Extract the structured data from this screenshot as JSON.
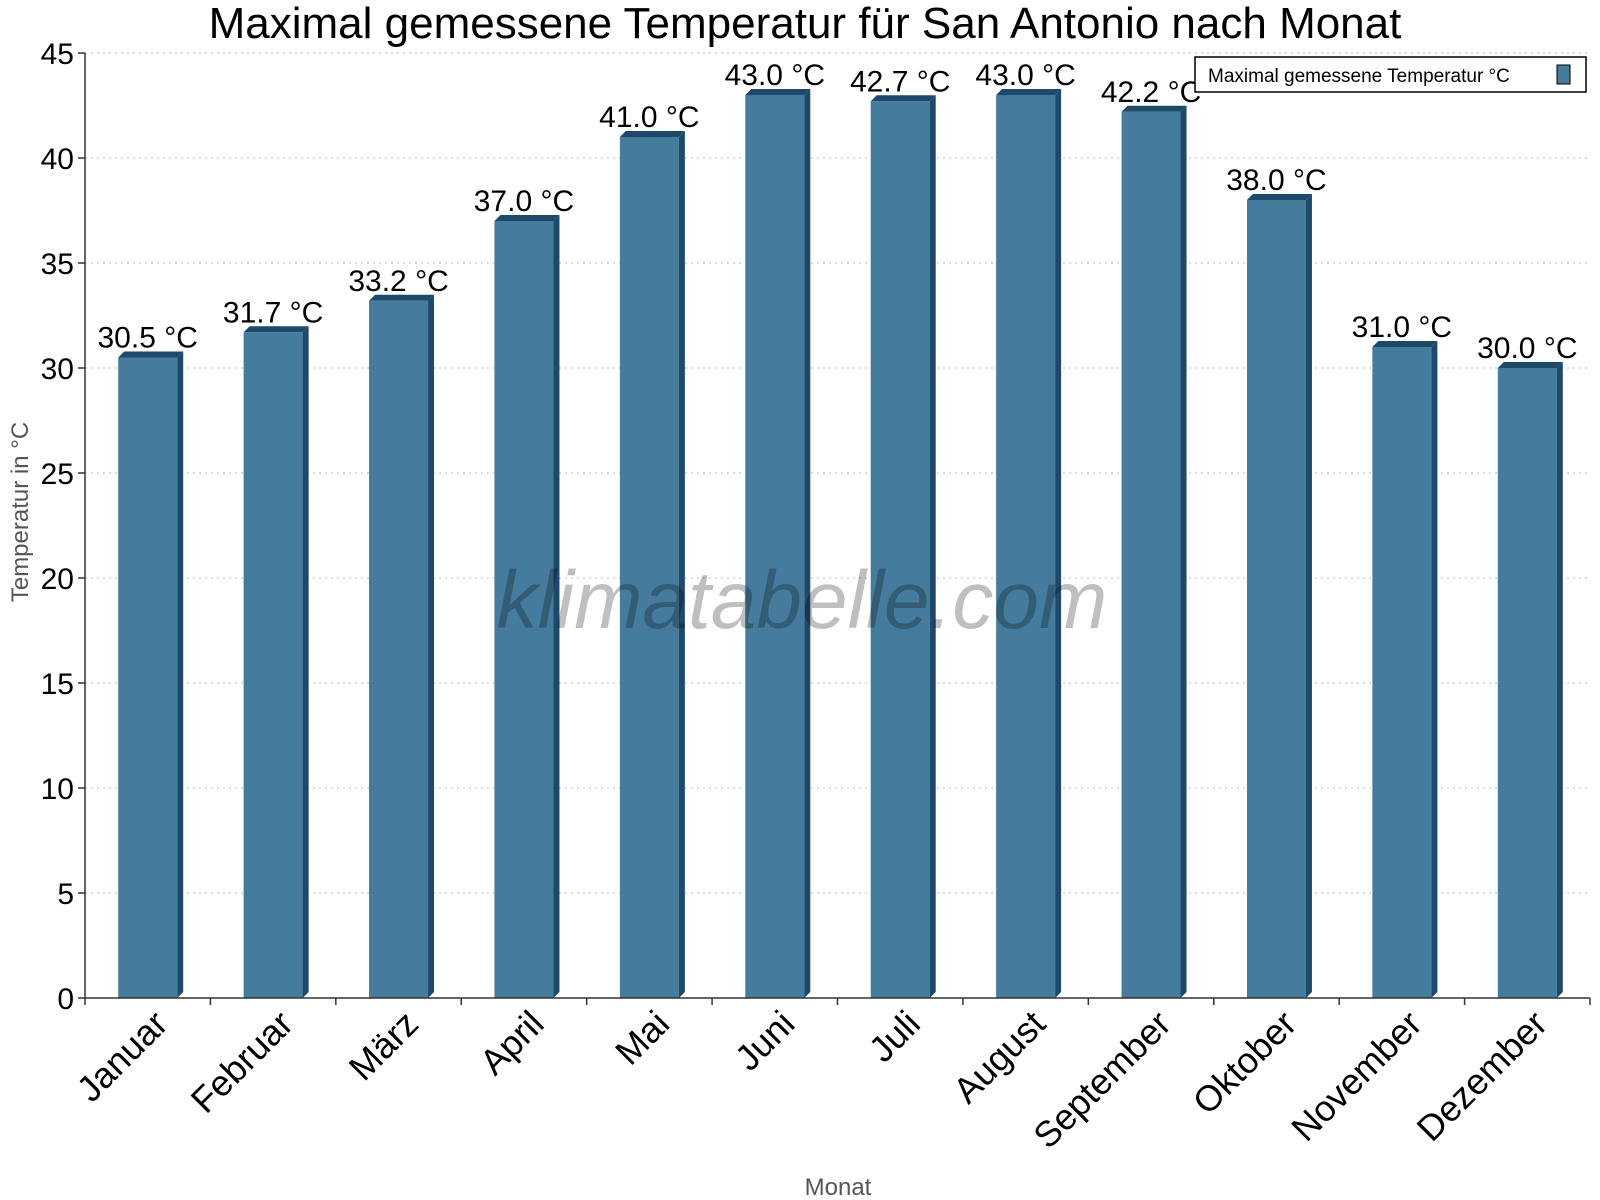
{
  "chart_data": {
    "type": "bar",
    "title": "Maximal gemessene Temperatur für San Antonio nach Monat",
    "xlabel": "Monat",
    "ylabel": "Temperatur in °C",
    "categories": [
      "Januar",
      "Februar",
      "März",
      "April",
      "Mai",
      "Juni",
      "Juli",
      "August",
      "September",
      "Oktober",
      "November",
      "Dezember"
    ],
    "series": [
      {
        "name": "Maximal gemessene Temperatur °C",
        "values": [
          30.5,
          31.7,
          33.2,
          37.0,
          41.0,
          43.0,
          42.7,
          43.0,
          42.2,
          38.0,
          31.0,
          30.0
        ],
        "labels": [
          "30.5 °C",
          "31.7 °C",
          "33.2 °C",
          "37.0 °C",
          "41.0 °C",
          "43.0 °C",
          "42.7 °C",
          "43.0 °C",
          "42.2 °C",
          "38.0 °C",
          "31.0 °C",
          "30.0 °C"
        ],
        "color": "#457b9d"
      }
    ],
    "ylim": [
      0,
      45
    ],
    "yticks": [
      "0",
      "5",
      "10",
      "15",
      "20",
      "25",
      "30",
      "35",
      "40",
      "45"
    ],
    "grid": true,
    "legend_position": "top-right"
  },
  "watermark": "klimatabelle.com",
  "colors": {
    "bar_front": "#457b9d",
    "bar_side": "#1d4a6b",
    "bar_top": "#1d4a6b",
    "grid": "#bbbbbb",
    "axis": "#333333"
  }
}
